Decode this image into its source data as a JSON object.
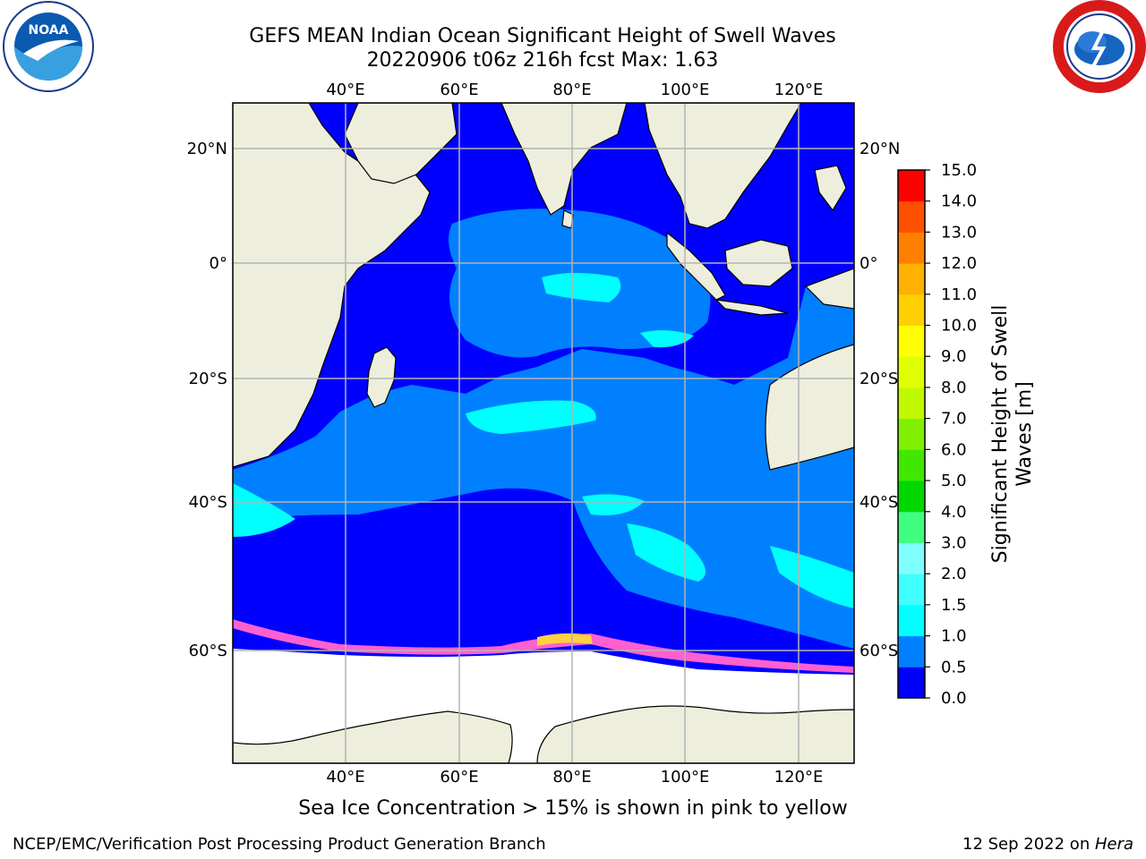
{
  "title_line1": "GEFS MEAN Indian Ocean Significant Height of Swell Waves",
  "title_line2": "20220906 t06z 216h fcst   Max: 1.63",
  "logos": {
    "left": "noaa-logo",
    "right": "nws-logo"
  },
  "axes": {
    "lon_labels": [
      "40°E",
      "60°E",
      "80°E",
      "100°E",
      "120°E"
    ],
    "lat_labels_left": [
      "20°N",
      "0°",
      "20°S",
      "40°S",
      "60°S"
    ],
    "lat_labels_right": [
      "20°N",
      "0°",
      "20°S",
      "40°S",
      "60°S"
    ]
  },
  "colorbar": {
    "label_line1": "Significant Height of Swell",
    "label_line2": "Waves [m]",
    "ticks": [
      "15.0",
      "14.0",
      "13.0",
      "12.0",
      "11.0",
      "10.0",
      "9.0",
      "8.0",
      "7.0",
      "6.0",
      "5.0",
      "4.0",
      "3.0",
      "2.0",
      "1.5",
      "1.0",
      "0.5",
      "0.0"
    ],
    "colors_bottom_to_top": [
      "#0000ff",
      "#0080ff",
      "#00ffff",
      "#40ffff",
      "#80ffff",
      "#40ff80",
      "#00d800",
      "#40e800",
      "#80f000",
      "#c0f800",
      "#e0ff00",
      "#ffff00",
      "#ffd000",
      "#ffb000",
      "#ff8000",
      "#ff5000",
      "#ff0000"
    ]
  },
  "caption": "Sea Ice Concentration > 15% is shown in pink to yellow",
  "credit_left": "NCEP/EMC/Verification Post Processing Product Generation Branch",
  "credit_right_prefix": "12 Sep 2022 on ",
  "credit_right_host": "Hera",
  "map_colors": {
    "land": "#eeeedd",
    "grid": "#b4b4b4",
    "deep": "#0000ff",
    "mid": "#0080ff",
    "light": "#00ffff"
  }
}
